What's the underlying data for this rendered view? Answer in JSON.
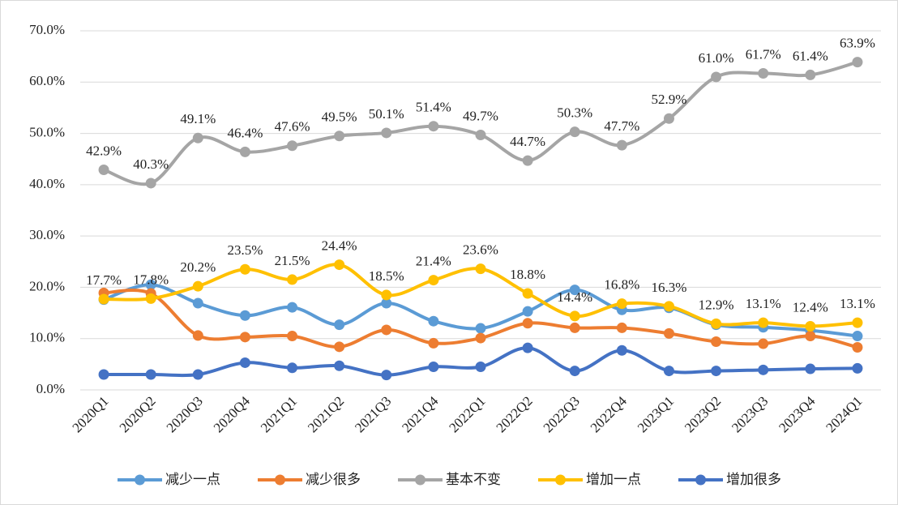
{
  "chart_data": {
    "type": "line",
    "categories": [
      "2020Q1",
      "2020Q2",
      "2020Q3",
      "2020Q4",
      "2021Q1",
      "2021Q2",
      "2021Q3",
      "2021Q4",
      "2022Q1",
      "2022Q2",
      "2022Q3",
      "2022Q4",
      "2023Q1",
      "2023Q2",
      "2023Q3",
      "2023Q4",
      "2024Q1"
    ],
    "series": [
      {
        "name": "减少一点",
        "color": "#5b9bd5",
        "values": [
          17.6,
          20.5,
          16.9,
          14.5,
          16.1,
          12.7,
          16.9,
          13.4,
          12.0,
          15.3,
          19.5,
          15.6,
          16.0,
          12.7,
          12.2,
          11.6,
          10.5
        ]
      },
      {
        "name": "减少很多",
        "color": "#ed7d31",
        "values": [
          18.9,
          18.8,
          10.6,
          10.3,
          10.5,
          8.4,
          11.7,
          9.1,
          10.1,
          13.0,
          12.1,
          12.1,
          11.0,
          9.4,
          9.0,
          10.5,
          8.3
        ]
      },
      {
        "name": "基本不变",
        "color": "#a5a5a5",
        "values": [
          42.9,
          40.3,
          49.1,
          46.4,
          47.6,
          49.5,
          50.1,
          51.4,
          49.7,
          44.7,
          50.3,
          47.7,
          52.9,
          61.0,
          61.7,
          61.4,
          63.9
        ],
        "value_labels": [
          "42.9%",
          "40.3%",
          "49.1%",
          "46.4%",
          "47.6%",
          "49.5%",
          "50.1%",
          "51.4%",
          "49.7%",
          "44.7%",
          "50.3%",
          "47.7%",
          "52.9%",
          "61.0%",
          "61.7%",
          "61.4%",
          "63.9%"
        ]
      },
      {
        "name": "增加一点",
        "color": "#ffc000",
        "values": [
          17.7,
          17.8,
          20.2,
          23.5,
          21.5,
          24.4,
          18.5,
          21.4,
          23.6,
          18.8,
          14.4,
          16.8,
          16.3,
          12.9,
          13.1,
          12.4,
          13.1
        ],
        "value_labels": [
          "17.7%",
          "17.8%",
          "20.2%",
          "23.5%",
          "21.5%",
          "24.4%",
          "18.5%",
          "21.4%",
          "23.6%",
          "18.8%",
          "14.4%",
          "16.8%",
          "16.3%",
          "12.9%",
          "13.1%",
          "12.4%",
          "13.1%"
        ]
      },
      {
        "name": "增加很多",
        "color": "#4472c4",
        "values": [
          3.0,
          3.0,
          3.0,
          5.3,
          4.3,
          4.7,
          2.9,
          4.5,
          4.5,
          8.2,
          3.7,
          7.7,
          3.7,
          3.7,
          3.9,
          4.1,
          4.2
        ]
      }
    ],
    "ylim": [
      0,
      70
    ],
    "yticks": [
      {
        "value": 0,
        "label": "0.0%"
      },
      {
        "value": 10,
        "label": "10.0%"
      },
      {
        "value": 20,
        "label": "20.0%"
      },
      {
        "value": 30,
        "label": "30.0%"
      },
      {
        "value": 40,
        "label": "40.0%"
      },
      {
        "value": 50,
        "label": "50.0%"
      },
      {
        "value": 60,
        "label": "60.0%"
      },
      {
        "value": 70,
        "label": "70.0%"
      }
    ],
    "grid": true,
    "smooth": true,
    "legend": "bottom"
  }
}
